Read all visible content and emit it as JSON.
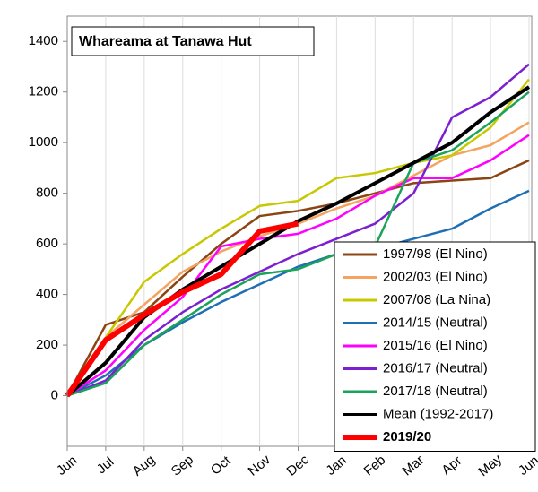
{
  "chart_data": {
    "type": "line",
    "title": "Whareama at Tanawa Hut",
    "categories": [
      "Jun",
      "Jul",
      "Aug",
      "Sep",
      "Oct",
      "Nov",
      "Dec",
      "Jan",
      "Feb",
      "Mar",
      "Apr",
      "May",
      "Jun"
    ],
    "ylim": [
      -200,
      1500
    ],
    "yticks": [
      0,
      200,
      400,
      600,
      800,
      1000,
      1200,
      1400
    ],
    "grid": "vertical",
    "legend": "bottom-right",
    "series": [
      {
        "name": "1997/98 (El Nino)",
        "color": "#8b4513",
        "values": [
          0,
          280,
          330,
          470,
          600,
          710,
          730,
          760,
          800,
          840,
          850,
          860,
          930
        ]
      },
      {
        "name": "2002/03 (El Nino)",
        "color": "#f4a460",
        "values": [
          0,
          230,
          360,
          490,
          570,
          630,
          680,
          740,
          790,
          870,
          950,
          990,
          1080
        ]
      },
      {
        "name": "2007/08 (La Nina)",
        "color": "#c8c800",
        "values": [
          0,
          230,
          450,
          560,
          660,
          750,
          770,
          860,
          880,
          920,
          950,
          1060,
          1250
        ]
      },
      {
        "name": "2014/15 (Neutral)",
        "color": "#1f6fb4",
        "values": [
          0,
          80,
          200,
          290,
          370,
          440,
          510,
          560,
          580,
          620,
          660,
          740,
          810
        ]
      },
      {
        "name": "2015/16 (El Nino)",
        "color": "#ff00ff",
        "values": [
          0,
          100,
          260,
          390,
          590,
          620,
          640,
          700,
          790,
          860,
          860,
          930,
          1030
        ]
      },
      {
        "name": "2016/17 (Neutral)",
        "color": "#7b1fd0",
        "values": [
          0,
          60,
          220,
          330,
          420,
          490,
          560,
          620,
          680,
          800,
          1100,
          1180,
          1310
        ]
      },
      {
        "name": "2017/18 (Neutral)",
        "color": "#1aa35a",
        "values": [
          0,
          50,
          200,
          300,
          400,
          480,
          500,
          560,
          590,
          920,
          970,
          1080,
          1200
        ]
      },
      {
        "name": "Mean (1992-2017)",
        "color": "#000000",
        "values": [
          0,
          130,
          310,
          420,
          510,
          600,
          690,
          760,
          840,
          920,
          1000,
          1120,
          1220
        ]
      },
      {
        "name": "2019/20",
        "color": "#ff0000",
        "values": [
          0,
          220,
          320,
          410,
          480,
          650,
          680,
          null,
          null,
          null,
          null,
          null,
          null
        ]
      }
    ]
  }
}
